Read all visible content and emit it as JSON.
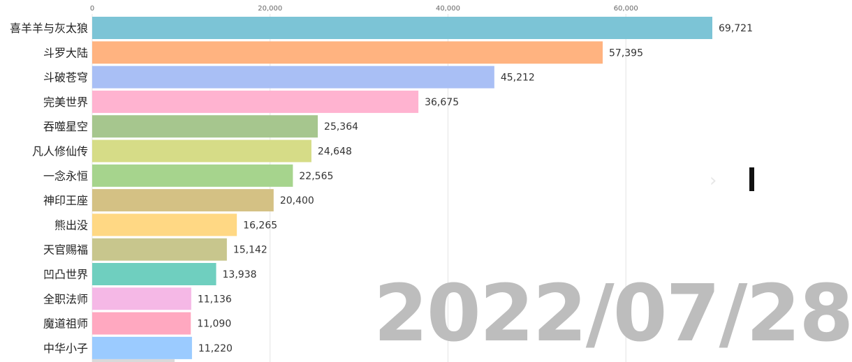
{
  "chart_data": {
    "type": "bar",
    "orientation": "horizontal",
    "categories": [
      "喜羊羊与灰太狼",
      "斗罗大陆",
      "斗破苍穹",
      "完美世界",
      "吞噬星空",
      "凡人修仙传",
      "一念永恒",
      "神印王座",
      "熊出没",
      "天官赐福",
      "凹凸世界",
      "全职法师",
      "魔道祖师",
      "中华小子"
    ],
    "values": [
      69721,
      57395,
      45212,
      36675,
      25364,
      24648,
      22565,
      20400,
      16265,
      15142,
      13938,
      11136,
      11090,
      11220
    ],
    "value_labels": [
      "69,721",
      "57,395",
      "45,212",
      "36,675",
      "25,364",
      "24,648",
      "22,565",
      "20,400",
      "16,265",
      "15,142",
      "13,938",
      "11,136",
      "11,090",
      "11,220"
    ],
    "colors": [
      "#7cc4d6",
      "#ffb380",
      "#a9bff5",
      "#ffb3d0",
      "#a6c68e",
      "#d6dc87",
      "#a6d48d",
      "#d4c184",
      "#ffd884",
      "#c8c68d",
      "#6fcfbf",
      "#f5b8e6",
      "#ffa8c0",
      "#9bcbff"
    ],
    "x_ticks": [
      0,
      20000,
      40000,
      60000
    ],
    "x_tick_labels": [
      "0",
      "20,000",
      "40,000",
      "60,000"
    ],
    "xlim": [
      0,
      70000
    ],
    "grid": true,
    "title": "",
    "xlabel": "",
    "ylabel": "",
    "date_label": "2022/07/28"
  },
  "overlay": {
    "date": "2022/07/28",
    "nav_arrow": "›"
  }
}
